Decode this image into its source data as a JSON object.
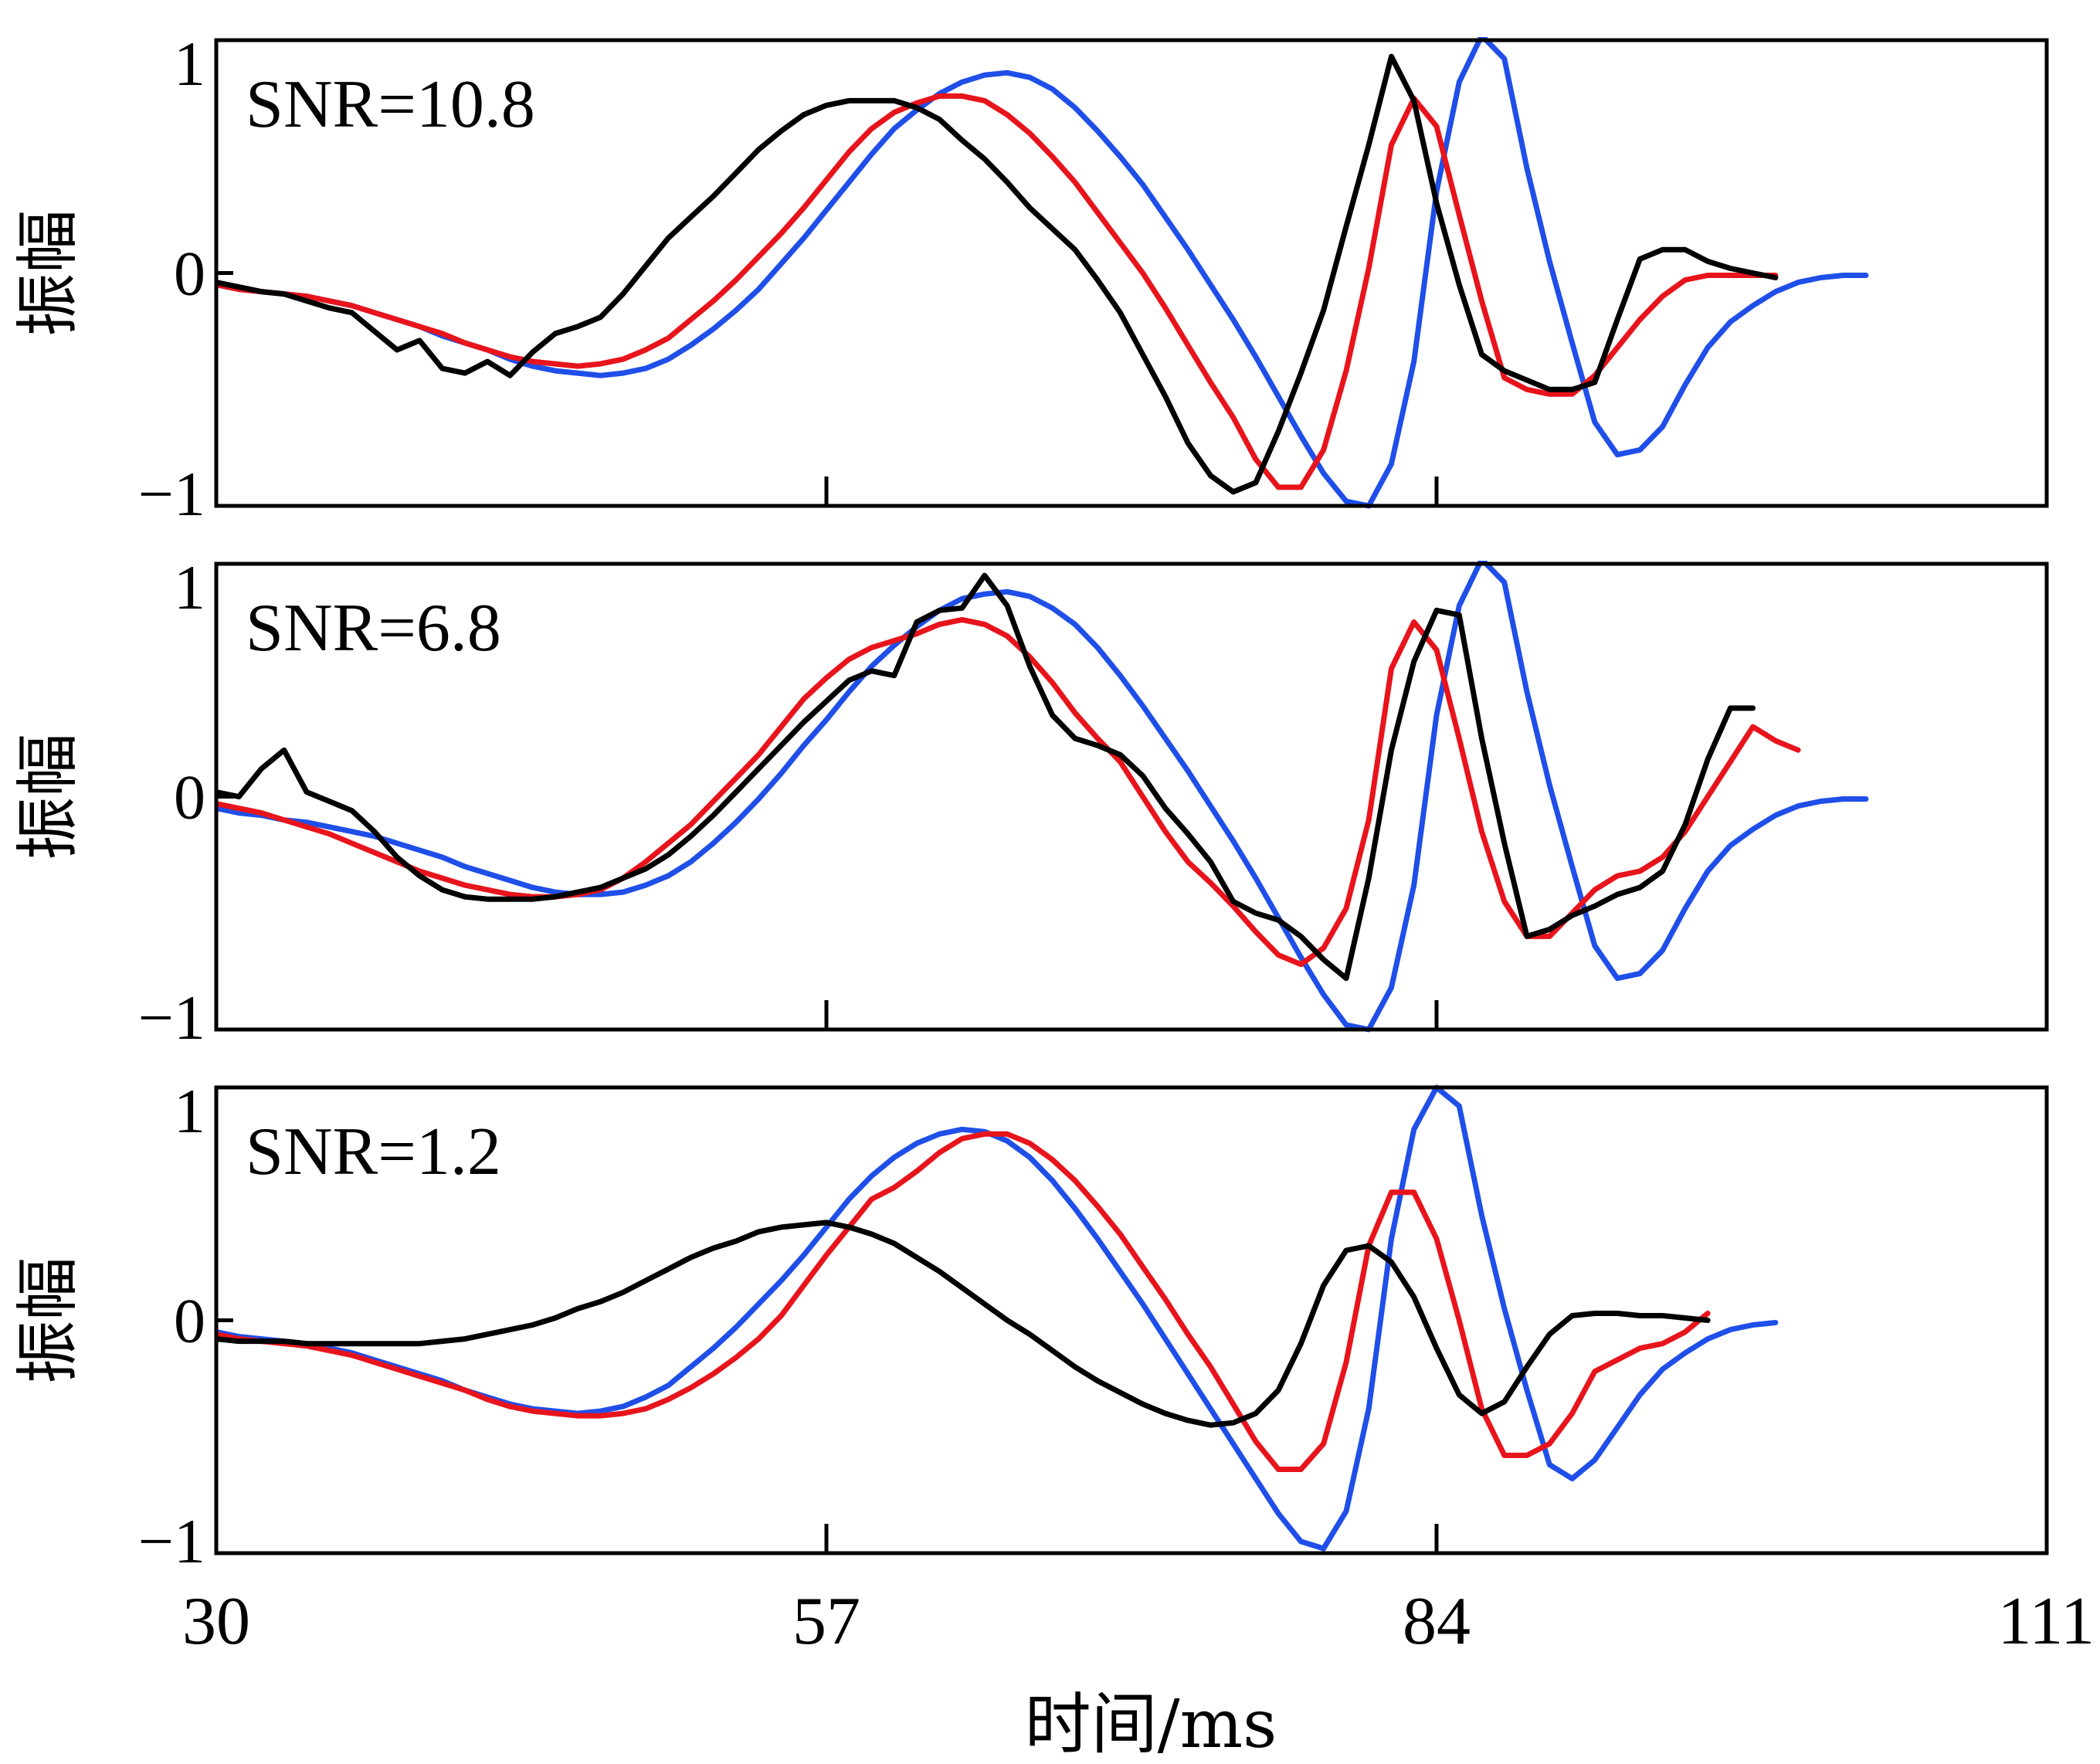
{
  "chart_data": {
    "type": "line",
    "xlabel": "时间/ms",
    "xlim": [
      30,
      111
    ],
    "xticks": [
      30,
      57,
      84,
      111
    ],
    "colors": {
      "blue": "#1f4fe8",
      "red": "#e8141c",
      "black": "#000000"
    },
    "x": [
      30,
      31,
      32,
      33,
      34,
      35,
      36,
      37,
      38,
      39,
      40,
      41,
      42,
      43,
      44,
      45,
      46,
      47,
      48,
      49,
      50,
      51,
      52,
      53,
      54,
      55,
      56,
      57,
      58,
      59,
      60,
      61,
      62,
      63,
      64,
      65,
      66,
      67,
      68,
      69,
      70,
      71,
      72,
      73,
      74,
      75,
      76,
      77,
      78,
      79,
      80,
      81,
      82,
      83,
      84,
      85,
      86,
      87,
      88,
      89,
      90,
      91,
      92,
      93,
      94,
      95,
      96,
      97,
      98,
      99,
      100,
      101,
      102,
      103,
      104,
      105,
      106,
      107,
      108,
      109,
      110,
      111
    ],
    "panels": [
      {
        "annotation": "SNR=10.8",
        "ylabel": "振幅",
        "ylim": [
          -1,
          1
        ],
        "yticks": [
          -1,
          0,
          1
        ],
        "ytick_labels": [
          "−1",
          "0",
          "1"
        ],
        "series": [
          {
            "color": "#1f4fe8",
            "values": [
              -0.05,
              -0.07,
              -0.08,
              -0.09,
              -0.1,
              -0.12,
              -0.14,
              -0.17,
              -0.2,
              -0.23,
              -0.27,
              -0.3,
              -0.33,
              -0.37,
              -0.4,
              -0.42,
              -0.43,
              -0.44,
              -0.43,
              -0.41,
              -0.37,
              -0.31,
              -0.24,
              -0.16,
              -0.07,
              0.04,
              0.15,
              0.27,
              0.39,
              0.51,
              0.62,
              0.7,
              0.77,
              0.82,
              0.85,
              0.86,
              0.84,
              0.79,
              0.71,
              0.61,
              0.5,
              0.38,
              0.24,
              0.1,
              -0.05,
              -0.2,
              -0.36,
              -0.53,
              -0.7,
              -0.86,
              -0.98,
              -1.0,
              -0.82,
              -0.38,
              0.35,
              0.82,
              1.02,
              0.92,
              0.45,
              0.05,
              -0.3,
              -0.64,
              -0.78,
              -0.76,
              -0.66,
              -0.48,
              -0.32,
              -0.21,
              -0.14,
              -0.08,
              -0.04,
              -0.02,
              -0.01,
              -0.01
            ]
          },
          {
            "color": "#e8141c",
            "values": [
              -0.05,
              -0.07,
              -0.08,
              -0.09,
              -0.1,
              -0.12,
              -0.14,
              -0.17,
              -0.2,
              -0.23,
              -0.26,
              -0.3,
              -0.33,
              -0.36,
              -0.38,
              -0.39,
              -0.4,
              -0.39,
              -0.37,
              -0.33,
              -0.28,
              -0.2,
              -0.12,
              -0.03,
              0.07,
              0.17,
              0.28,
              0.4,
              0.52,
              0.62,
              0.69,
              0.73,
              0.76,
              0.76,
              0.74,
              0.68,
              0.6,
              0.5,
              0.39,
              0.26,
              0.13,
              0.0,
              -0.15,
              -0.31,
              -0.47,
              -0.62,
              -0.8,
              -0.92,
              -0.92,
              -0.76,
              -0.42,
              0.02,
              0.55,
              0.75,
              0.63,
              0.25,
              -0.12,
              -0.45,
              -0.5,
              -0.52,
              -0.52,
              -0.44,
              -0.32,
              -0.2,
              -0.1,
              -0.03,
              -0.01,
              -0.01,
              -0.01,
              -0.01
            ]
          },
          {
            "color": "#000000",
            "values": [
              -0.04,
              -0.06,
              -0.08,
              -0.09,
              -0.12,
              -0.15,
              -0.17,
              -0.25,
              -0.33,
              -0.29,
              -0.41,
              -0.43,
              -0.38,
              -0.44,
              -0.34,
              -0.26,
              -0.23,
              -0.19,
              -0.09,
              0.03,
              0.15,
              0.24,
              0.33,
              0.43,
              0.53,
              0.61,
              0.68,
              0.72,
              0.74,
              0.74,
              0.74,
              0.71,
              0.66,
              0.57,
              0.49,
              0.39,
              0.28,
              0.19,
              0.1,
              -0.03,
              -0.17,
              -0.35,
              -0.53,
              -0.73,
              -0.87,
              -0.94,
              -0.9,
              -0.68,
              -0.43,
              -0.16,
              0.2,
              0.55,
              0.93,
              0.74,
              0.3,
              -0.05,
              -0.35,
              -0.42,
              -0.46,
              -0.5,
              -0.5,
              -0.47,
              -0.2,
              0.06,
              0.1,
              0.1,
              0.05,
              0.02,
              0.0,
              -0.02
            ]
          }
        ]
      },
      {
        "annotation": "SNR=6.8",
        "ylabel": "振幅",
        "ylim": [
          -1,
          1
        ],
        "yticks": [
          -1,
          0,
          1
        ],
        "ytick_labels": [
          "−1",
          "0",
          "1"
        ],
        "series": [
          {
            "color": "#1f4fe8",
            "values": [
              -0.05,
              -0.07,
              -0.08,
              -0.1,
              -0.11,
              -0.13,
              -0.15,
              -0.17,
              -0.2,
              -0.23,
              -0.26,
              -0.3,
              -0.33,
              -0.36,
              -0.39,
              -0.41,
              -0.42,
              -0.42,
              -0.41,
              -0.38,
              -0.34,
              -0.28,
              -0.2,
              -0.11,
              -0.01,
              0.1,
              0.22,
              0.33,
              0.45,
              0.56,
              0.65,
              0.73,
              0.8,
              0.85,
              0.87,
              0.88,
              0.86,
              0.81,
              0.74,
              0.64,
              0.52,
              0.39,
              0.25,
              0.11,
              -0.04,
              -0.19,
              -0.35,
              -0.52,
              -0.69,
              -0.85,
              -0.98,
              -1.0,
              -0.82,
              -0.38,
              0.35,
              0.82,
              1.02,
              0.92,
              0.45,
              0.05,
              -0.3,
              -0.64,
              -0.78,
              -0.76,
              -0.66,
              -0.48,
              -0.32,
              -0.21,
              -0.14,
              -0.08,
              -0.04,
              -0.02,
              -0.01,
              -0.01
            ]
          },
          {
            "color": "#e8141c",
            "values": [
              -0.03,
              -0.05,
              -0.07,
              -0.1,
              -0.13,
              -0.16,
              -0.2,
              -0.24,
              -0.28,
              -0.32,
              -0.35,
              -0.38,
              -0.4,
              -0.42,
              -0.43,
              -0.43,
              -0.42,
              -0.4,
              -0.35,
              -0.28,
              -0.2,
              -0.12,
              -0.02,
              0.08,
              0.18,
              0.3,
              0.42,
              0.51,
              0.59,
              0.64,
              0.67,
              0.7,
              0.74,
              0.76,
              0.74,
              0.69,
              0.6,
              0.49,
              0.36,
              0.25,
              0.15,
              0.0,
              -0.15,
              -0.28,
              -0.37,
              -0.47,
              -0.58,
              -0.68,
              -0.72,
              -0.65,
              -0.48,
              -0.1,
              0.55,
              0.75,
              0.63,
              0.25,
              -0.15,
              -0.45,
              -0.6,
              -0.6,
              -0.5,
              -0.4,
              -0.34,
              -0.32,
              -0.26,
              -0.15,
              0.0,
              0.15,
              0.3,
              0.24,
              0.2
            ]
          },
          {
            "color": "#000000",
            "values": [
              0.02,
              0.0,
              0.12,
              0.2,
              0.02,
              -0.02,
              -0.06,
              -0.15,
              -0.26,
              -0.34,
              -0.4,
              -0.43,
              -0.44,
              -0.44,
              -0.44,
              -0.43,
              -0.41,
              -0.39,
              -0.35,
              -0.31,
              -0.25,
              -0.17,
              -0.08,
              0.02,
              0.12,
              0.22,
              0.32,
              0.41,
              0.5,
              0.54,
              0.52,
              0.75,
              0.8,
              0.81,
              0.95,
              0.82,
              0.56,
              0.35,
              0.25,
              0.22,
              0.18,
              0.09,
              -0.05,
              -0.16,
              -0.28,
              -0.45,
              -0.5,
              -0.53,
              -0.6,
              -0.7,
              -0.78,
              -0.35,
              0.2,
              0.58,
              0.8,
              0.78,
              0.25,
              -0.2,
              -0.6,
              -0.57,
              -0.51,
              -0.47,
              -0.42,
              -0.39,
              -0.32,
              -0.12,
              0.16,
              0.38,
              0.38
            ]
          }
        ]
      },
      {
        "annotation": "SNR=1.2",
        "ylabel": "振幅",
        "ylim": [
          -1,
          1
        ],
        "yticks": [
          -1,
          0,
          1
        ],
        "ytick_labels": [
          "−1",
          "0",
          "1"
        ],
        "series": [
          {
            "color": "#1f4fe8",
            "values": [
              -0.05,
              -0.07,
              -0.08,
              -0.09,
              -0.1,
              -0.12,
              -0.14,
              -0.17,
              -0.2,
              -0.23,
              -0.26,
              -0.3,
              -0.33,
              -0.36,
              -0.38,
              -0.39,
              -0.4,
              -0.39,
              -0.37,
              -0.33,
              -0.28,
              -0.2,
              -0.12,
              -0.03,
              0.07,
              0.17,
              0.28,
              0.4,
              0.52,
              0.62,
              0.7,
              0.76,
              0.8,
              0.82,
              0.81,
              0.77,
              0.7,
              0.6,
              0.48,
              0.35,
              0.21,
              0.07,
              -0.08,
              -0.23,
              -0.38,
              -0.53,
              -0.68,
              -0.83,
              -0.95,
              -0.98,
              -0.82,
              -0.38,
              0.35,
              0.82,
              1.0,
              0.92,
              0.45,
              0.05,
              -0.3,
              -0.62,
              -0.68,
              -0.6,
              -0.46,
              -0.32,
              -0.21,
              -0.14,
              -0.08,
              -0.04,
              -0.02,
              -0.01
            ]
          },
          {
            "color": "#e8141c",
            "values": [
              -0.06,
              -0.08,
              -0.09,
              -0.1,
              -0.11,
              -0.13,
              -0.15,
              -0.18,
              -0.21,
              -0.24,
              -0.27,
              -0.3,
              -0.34,
              -0.37,
              -0.39,
              -0.4,
              -0.41,
              -0.41,
              -0.4,
              -0.38,
              -0.34,
              -0.29,
              -0.23,
              -0.16,
              -0.08,
              0.02,
              0.15,
              0.28,
              0.4,
              0.52,
              0.57,
              0.64,
              0.72,
              0.78,
              0.8,
              0.8,
              0.76,
              0.69,
              0.6,
              0.49,
              0.37,
              0.23,
              0.09,
              -0.06,
              -0.2,
              -0.36,
              -0.52,
              -0.64,
              -0.64,
              -0.53,
              -0.18,
              0.32,
              0.55,
              0.55,
              0.35,
              0.0,
              -0.38,
              -0.58,
              -0.58,
              -0.53,
              -0.4,
              -0.22,
              -0.17,
              -0.12,
              -0.1,
              -0.05,
              0.03
            ]
          },
          {
            "color": "#000000",
            "values": [
              -0.08,
              -0.09,
              -0.09,
              -0.09,
              -0.1,
              -0.1,
              -0.1,
              -0.1,
              -0.1,
              -0.1,
              -0.09,
              -0.08,
              -0.06,
              -0.04,
              -0.02,
              0.01,
              0.05,
              0.08,
              0.12,
              0.17,
              0.22,
              0.27,
              0.31,
              0.34,
              0.38,
              0.4,
              0.41,
              0.42,
              0.4,
              0.37,
              0.33,
              0.27,
              0.21,
              0.14,
              0.07,
              0.0,
              -0.06,
              -0.13,
              -0.2,
              -0.26,
              -0.31,
              -0.36,
              -0.4,
              -0.43,
              -0.45,
              -0.44,
              -0.4,
              -0.3,
              -0.1,
              0.15,
              0.3,
              0.32,
              0.25,
              0.1,
              -0.12,
              -0.32,
              -0.4,
              -0.35,
              -0.2,
              -0.06,
              0.02,
              0.03,
              0.03,
              0.02,
              0.02,
              0.01,
              0.0
            ]
          }
        ]
      }
    ]
  }
}
